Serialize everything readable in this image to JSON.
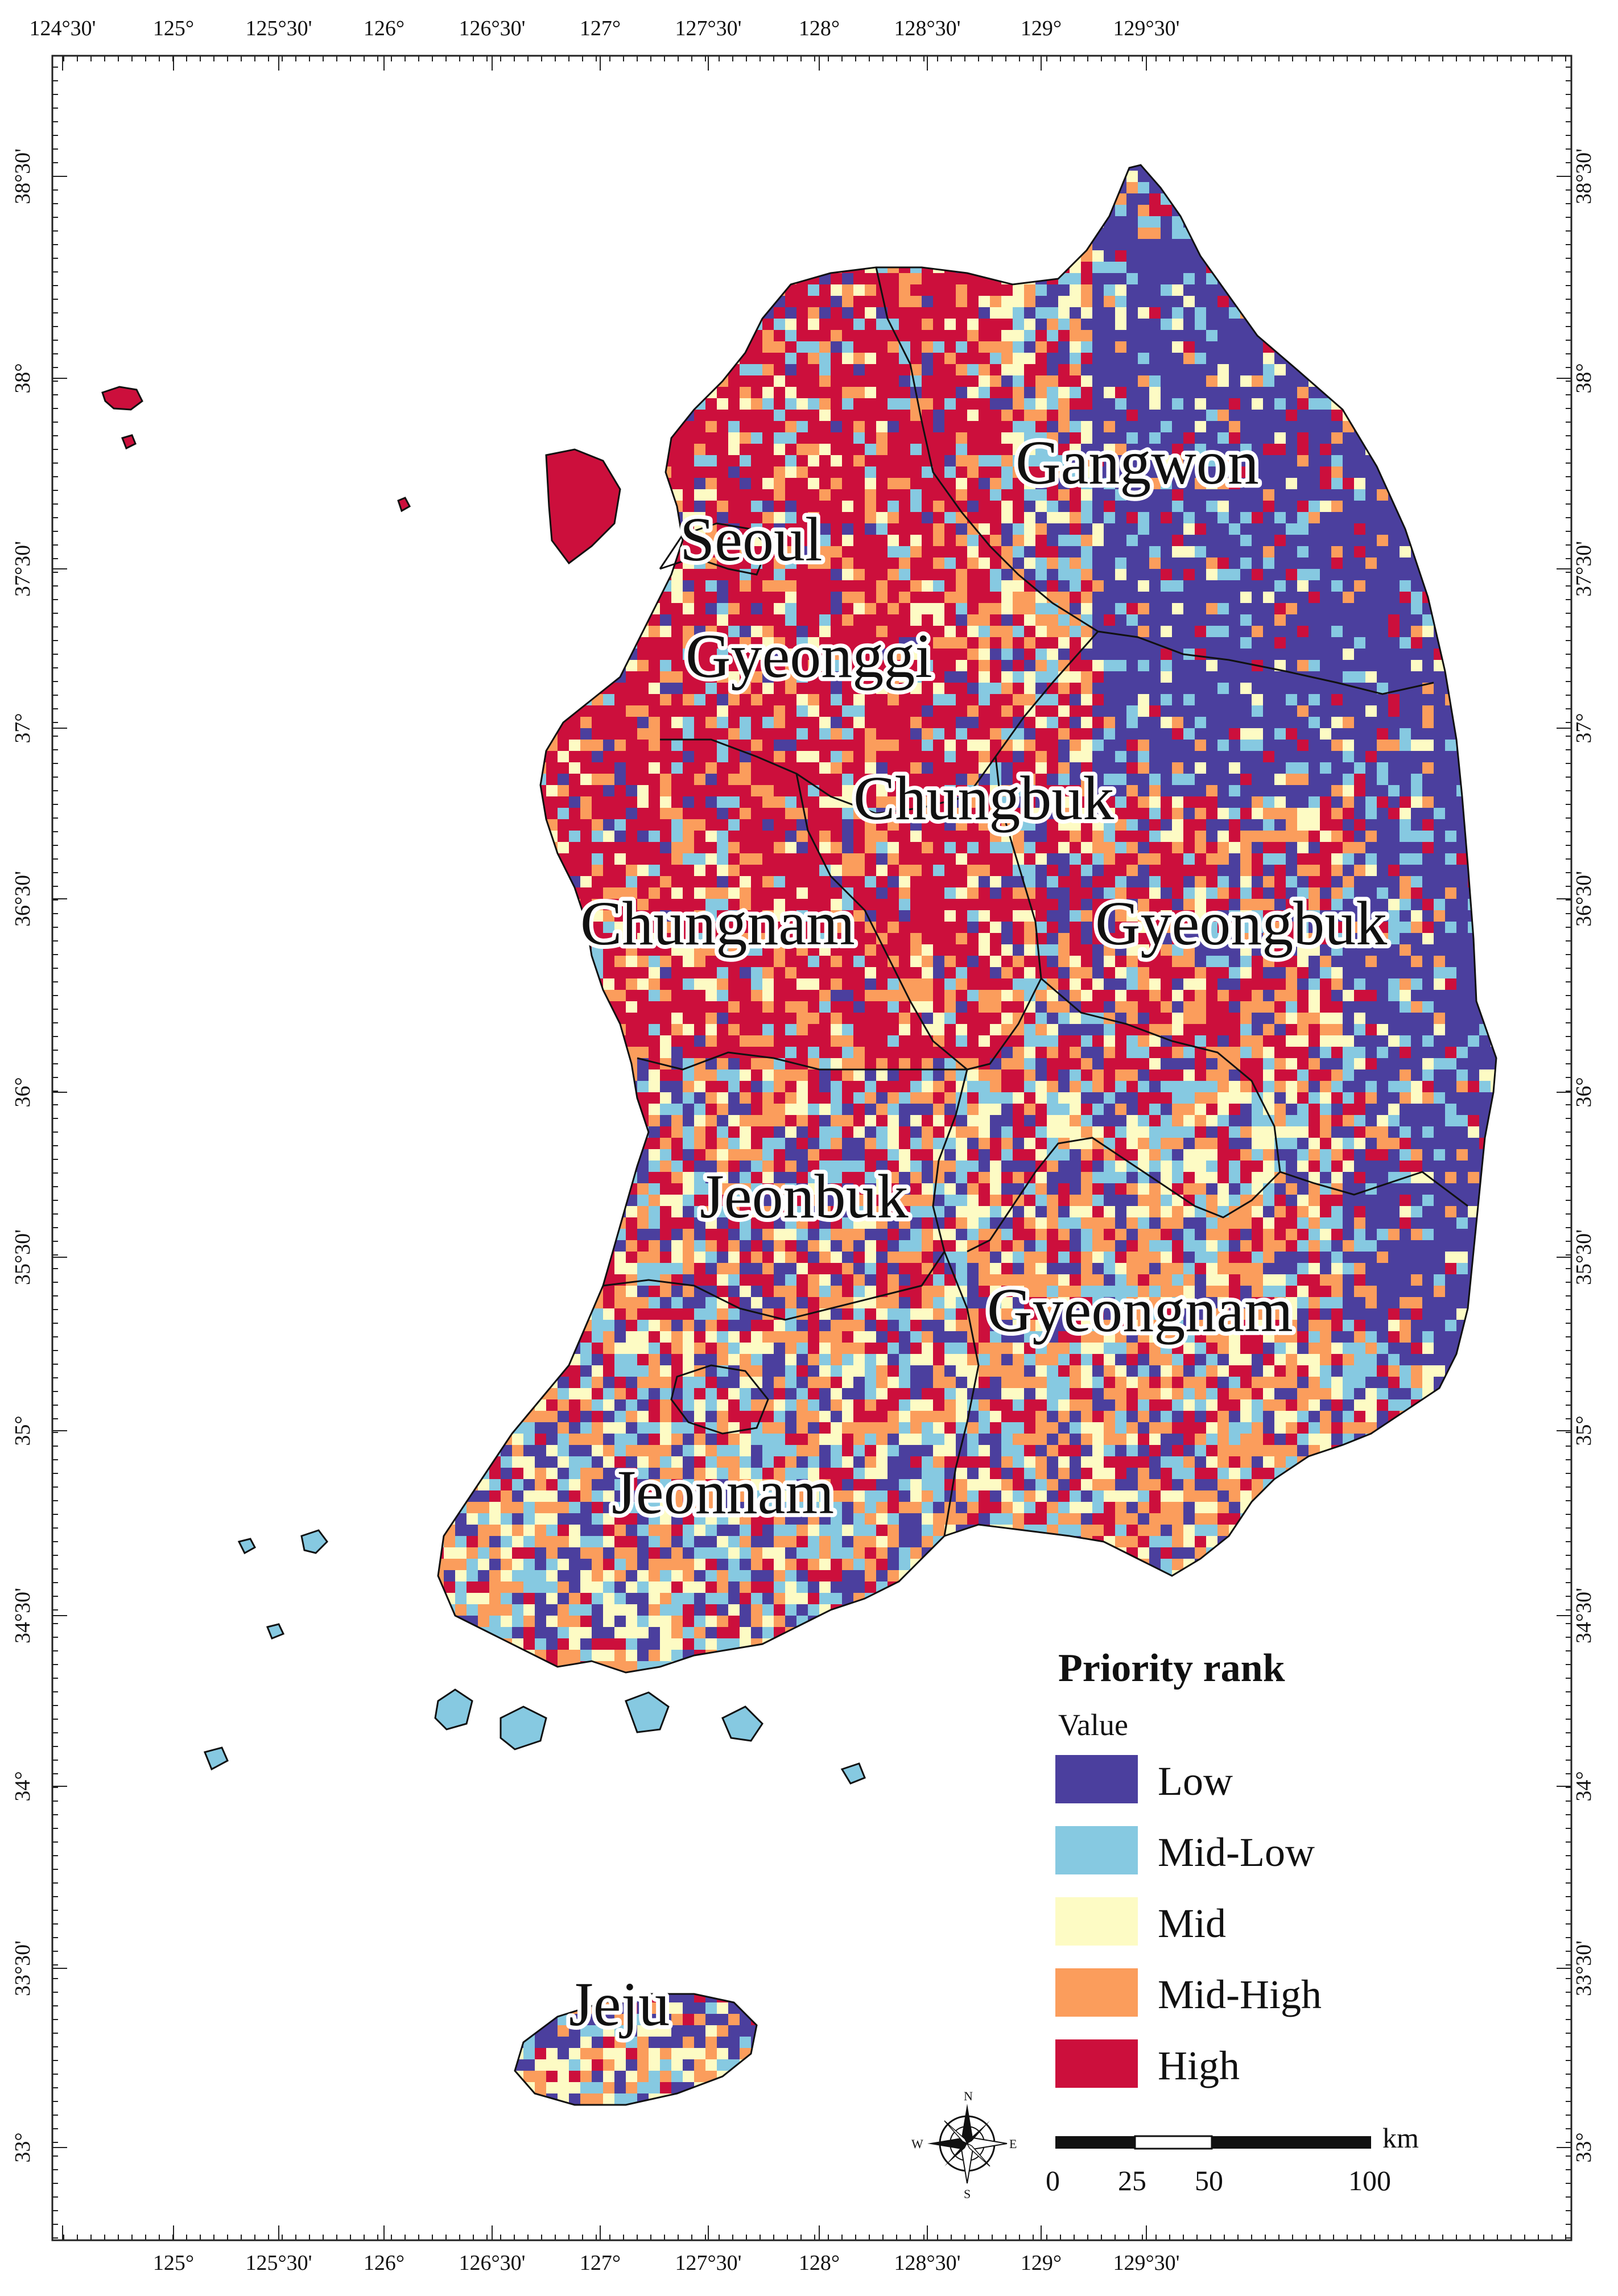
{
  "map": {
    "grid_lon_labels": [
      "124°30'",
      "125°",
      "125°30'",
      "126°",
      "126°30'",
      "127°",
      "127°30'",
      "128°",
      "128°30'",
      "129°",
      "129°30'"
    ],
    "grid_lat_labels": [
      "38°30'",
      "38°",
      "37°30'",
      "37°",
      "36°30'",
      "36°",
      "35°30'",
      "35°",
      "34°30'",
      "34°",
      "33°30'",
      "33°"
    ]
  },
  "regions": [
    {
      "name": "Seoul"
    },
    {
      "name": "Gyeonggi"
    },
    {
      "name": "Gangwon"
    },
    {
      "name": "Chungbuk"
    },
    {
      "name": "Chungnam"
    },
    {
      "name": "Gyeongbuk"
    },
    {
      "name": "Jeonbuk"
    },
    {
      "name": "Gyeongnam"
    },
    {
      "name": "Jeonnam"
    },
    {
      "name": "Jeju"
    }
  ],
  "legend": {
    "title": "Priority rank",
    "subtitle": "Value",
    "classes": [
      {
        "label": "Low",
        "color": "#4b3f9e"
      },
      {
        "label": "Mid-Low",
        "color": "#86c9e1"
      },
      {
        "label": "Mid",
        "color": "#fdfbc4"
      },
      {
        "label": "Mid-High",
        "color": "#fb9d5c"
      },
      {
        "label": "High",
        "color": "#cc0f3c"
      }
    ]
  },
  "scale_bar": {
    "unit": "km",
    "ticks": [
      "0",
      "25",
      "50",
      "100"
    ]
  },
  "compass": {
    "n": "N",
    "s": "S",
    "e": "E",
    "w": "W"
  }
}
